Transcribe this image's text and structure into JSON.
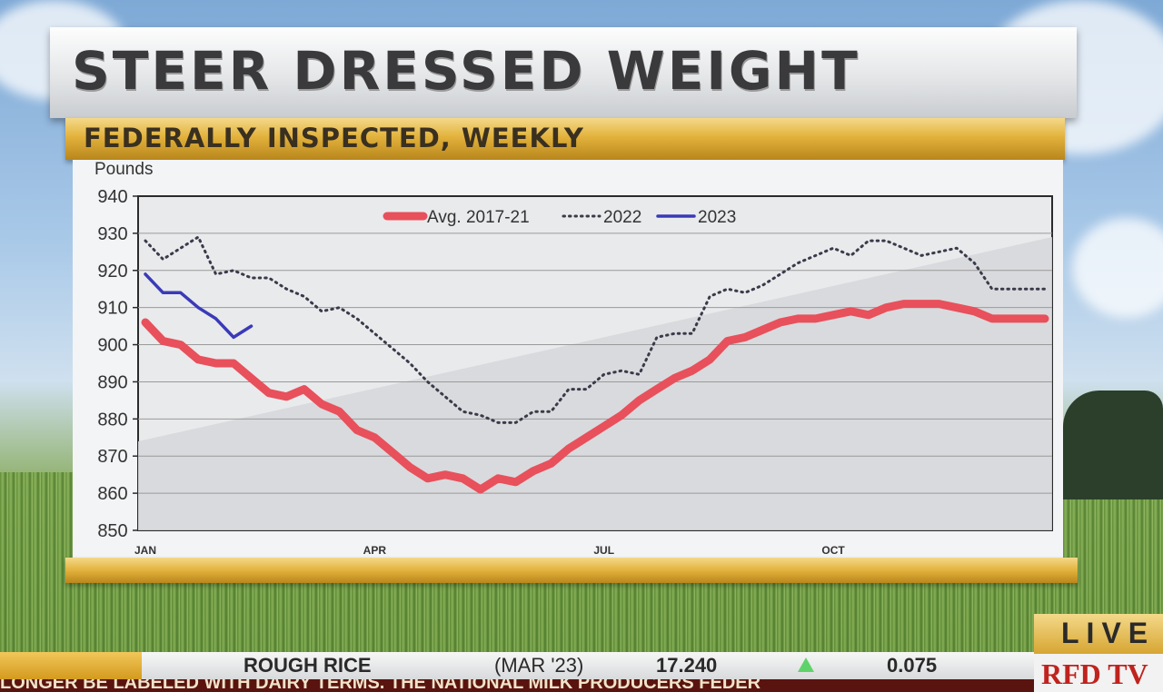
{
  "header": {
    "title": "STEER DRESSED WEIGHT",
    "subtitle": "FEDERALLY INSPECTED, WEEKLY"
  },
  "chart_data": {
    "type": "line",
    "ylabel": "Pounds",
    "ylim": [
      850,
      940
    ],
    "yticks": [
      "940",
      "930",
      "920",
      "910",
      "900",
      "890",
      "880",
      "870",
      "860",
      "850"
    ],
    "xticks": [
      "JAN",
      "APR",
      "JUL",
      "OCT"
    ],
    "grid": true,
    "legend_position": "top",
    "series": [
      {
        "name": "Avg. 2017-21",
        "color": "#e8505b",
        "style": "solid-thick",
        "x": [
          1,
          2,
          3,
          4,
          5,
          6,
          7,
          8,
          9,
          10,
          11,
          12,
          13,
          14,
          15,
          16,
          17,
          18,
          19,
          20,
          21,
          22,
          23,
          24,
          25,
          26,
          27,
          28,
          29,
          30,
          31,
          32,
          33,
          34,
          35,
          36,
          37,
          38,
          39,
          40,
          41,
          42,
          43,
          44,
          45,
          46,
          47,
          48,
          49,
          50,
          51,
          52
        ],
        "y": [
          906,
          901,
          900,
          896,
          895,
          895,
          891,
          887,
          886,
          888,
          884,
          882,
          877,
          875,
          871,
          867,
          864,
          865,
          864,
          861,
          864,
          863,
          866,
          868,
          872,
          875,
          878,
          881,
          885,
          888,
          891,
          893,
          896,
          901,
          902,
          904,
          906,
          907,
          907,
          908,
          909,
          908,
          910,
          911,
          911,
          911,
          910,
          909,
          907,
          907,
          907,
          907
        ]
      },
      {
        "name": "2022",
        "color": "#3a3a4a",
        "style": "dotted",
        "x": [
          1,
          2,
          3,
          4,
          5,
          6,
          7,
          8,
          9,
          10,
          11,
          12,
          13,
          14,
          15,
          16,
          17,
          18,
          19,
          20,
          21,
          22,
          23,
          24,
          25,
          26,
          27,
          28,
          29,
          30,
          31,
          32,
          33,
          34,
          35,
          36,
          37,
          38,
          39,
          40,
          41,
          42,
          43,
          44,
          45,
          46,
          47,
          48,
          49,
          50,
          51,
          52
        ],
        "y": [
          928,
          923,
          926,
          929,
          919,
          920,
          918,
          918,
          915,
          913,
          909,
          910,
          907,
          903,
          899,
          895,
          890,
          886,
          882,
          881,
          879,
          879,
          882,
          882,
          888,
          888,
          892,
          893,
          892,
          902,
          903,
          903,
          913,
          915,
          914,
          916,
          919,
          922,
          924,
          926,
          924,
          928,
          928,
          926,
          924,
          925,
          926,
          922,
          915,
          915,
          915,
          915
        ]
      },
      {
        "name": "2023",
        "color": "#3a3ab8",
        "style": "solid",
        "x": [
          1,
          2,
          3,
          4,
          5,
          6,
          7
        ],
        "y": [
          919,
          914,
          914,
          910,
          907,
          902,
          905
        ]
      }
    ]
  },
  "ticker": {
    "commodity": "ROUGH RICE",
    "contract": "(MAR '23)",
    "price": "17.240",
    "change": "0.075",
    "change_direction": "up",
    "crawl_text": "LONGER BE LABELED WITH DAIRY TERMS. THE NATIONAL MILK PRODUCERS FEDER"
  },
  "badges": {
    "live": "LIVE",
    "logo": "RFD TV"
  }
}
